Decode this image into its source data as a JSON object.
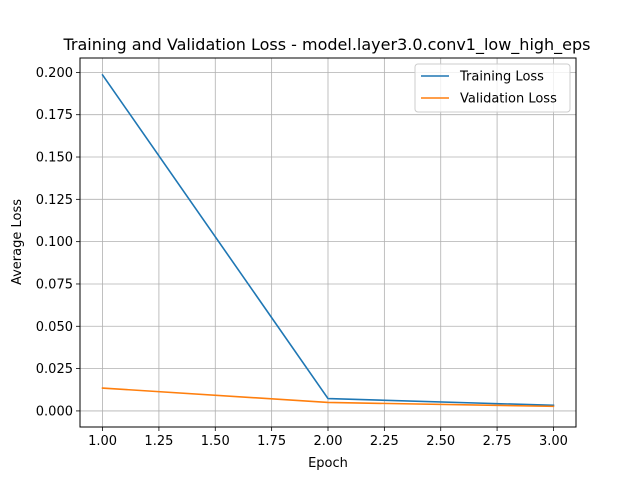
{
  "chart_data": {
    "type": "line",
    "title": "Training and Validation Loss - model.layer3.0.conv1_low_high_eps",
    "xlabel": "Epoch",
    "ylabel": "Average Loss",
    "x": [
      1,
      2,
      3
    ],
    "series": [
      {
        "name": "Training Loss",
        "values": [
          0.1985,
          0.0073,
          0.0033
        ],
        "color": "#1f77b4"
      },
      {
        "name": "Validation Loss",
        "values": [
          0.0135,
          0.005,
          0.0027
        ],
        "color": "#ff7f0e"
      }
    ],
    "xlim": [
      0.9,
      3.1
    ],
    "ylim": [
      -0.0095,
      0.2085
    ],
    "xticks": [
      1.0,
      1.25,
      1.5,
      1.75,
      2.0,
      2.25,
      2.5,
      2.75,
      3.0
    ],
    "xtick_labels": [
      "1.00",
      "1.25",
      "1.50",
      "1.75",
      "2.00",
      "2.25",
      "2.50",
      "2.75",
      "3.00"
    ],
    "yticks": [
      0.0,
      0.025,
      0.05,
      0.075,
      0.1,
      0.125,
      0.15,
      0.175,
      0.2
    ],
    "ytick_labels": [
      "0.000",
      "0.025",
      "0.050",
      "0.075",
      "0.100",
      "0.125",
      "0.150",
      "0.175",
      "0.200"
    ],
    "grid": true,
    "legend_position": "top-right"
  }
}
